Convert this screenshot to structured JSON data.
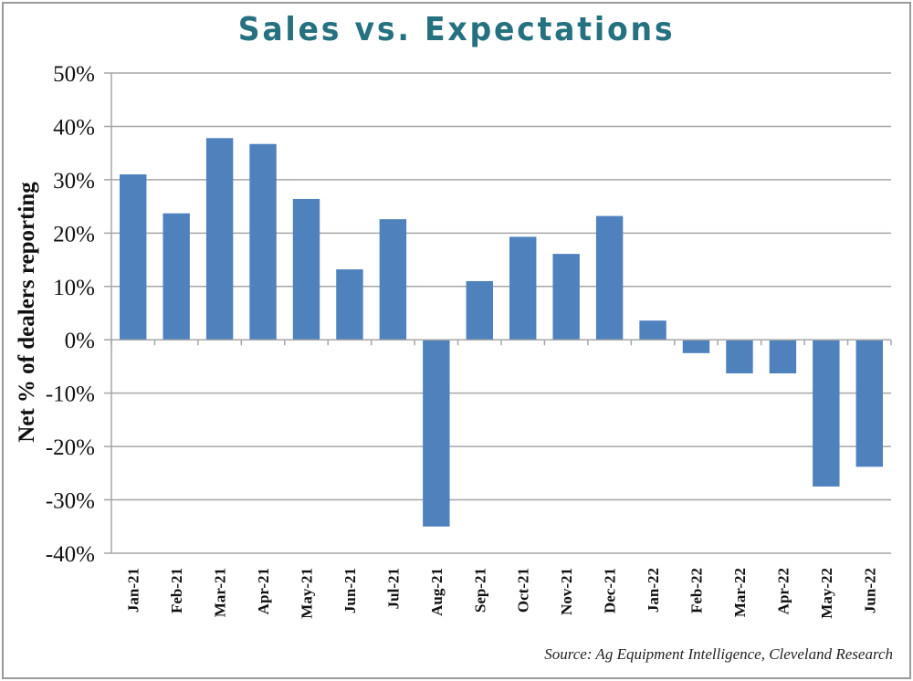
{
  "chart_data": {
    "type": "bar",
    "title": "Sales vs. Expectations",
    "xlabel": "",
    "ylabel": "Net % of dealers reporting",
    "source": "Source: Ag Equipment Intelligence, Cleveland Research",
    "ylim": [
      -40,
      50
    ],
    "yticks": [
      50,
      40,
      30,
      20,
      10,
      0,
      -10,
      -20,
      -30,
      -40
    ],
    "ytick_labels": [
      "50%",
      "40%",
      "30%",
      "20%",
      "10%",
      "0%",
      "-10%",
      "-20%",
      "-30%",
      "-40%"
    ],
    "grid": true,
    "bar_color": "#4f81bd",
    "title_color": "#26717f",
    "categories": [
      "Jan-21",
      "Feb-21",
      "Mar-21",
      "Apr-21",
      "May-21",
      "Jun-21",
      "Jul-21",
      "Aug-21",
      "Sep-21",
      "Oct-21",
      "Nov-21",
      "Dec-21",
      "Jan-22",
      "Feb-22",
      "Mar-22",
      "Apr-22",
      "May-22",
      "Jun-22"
    ],
    "values": [
      31,
      23.7,
      37.8,
      36.7,
      26.4,
      13.2,
      22.6,
      -35,
      11,
      19.3,
      16.1,
      23.2,
      3.6,
      -2.5,
      -6.3,
      -6.3,
      -27.5,
      -23.8
    ]
  }
}
